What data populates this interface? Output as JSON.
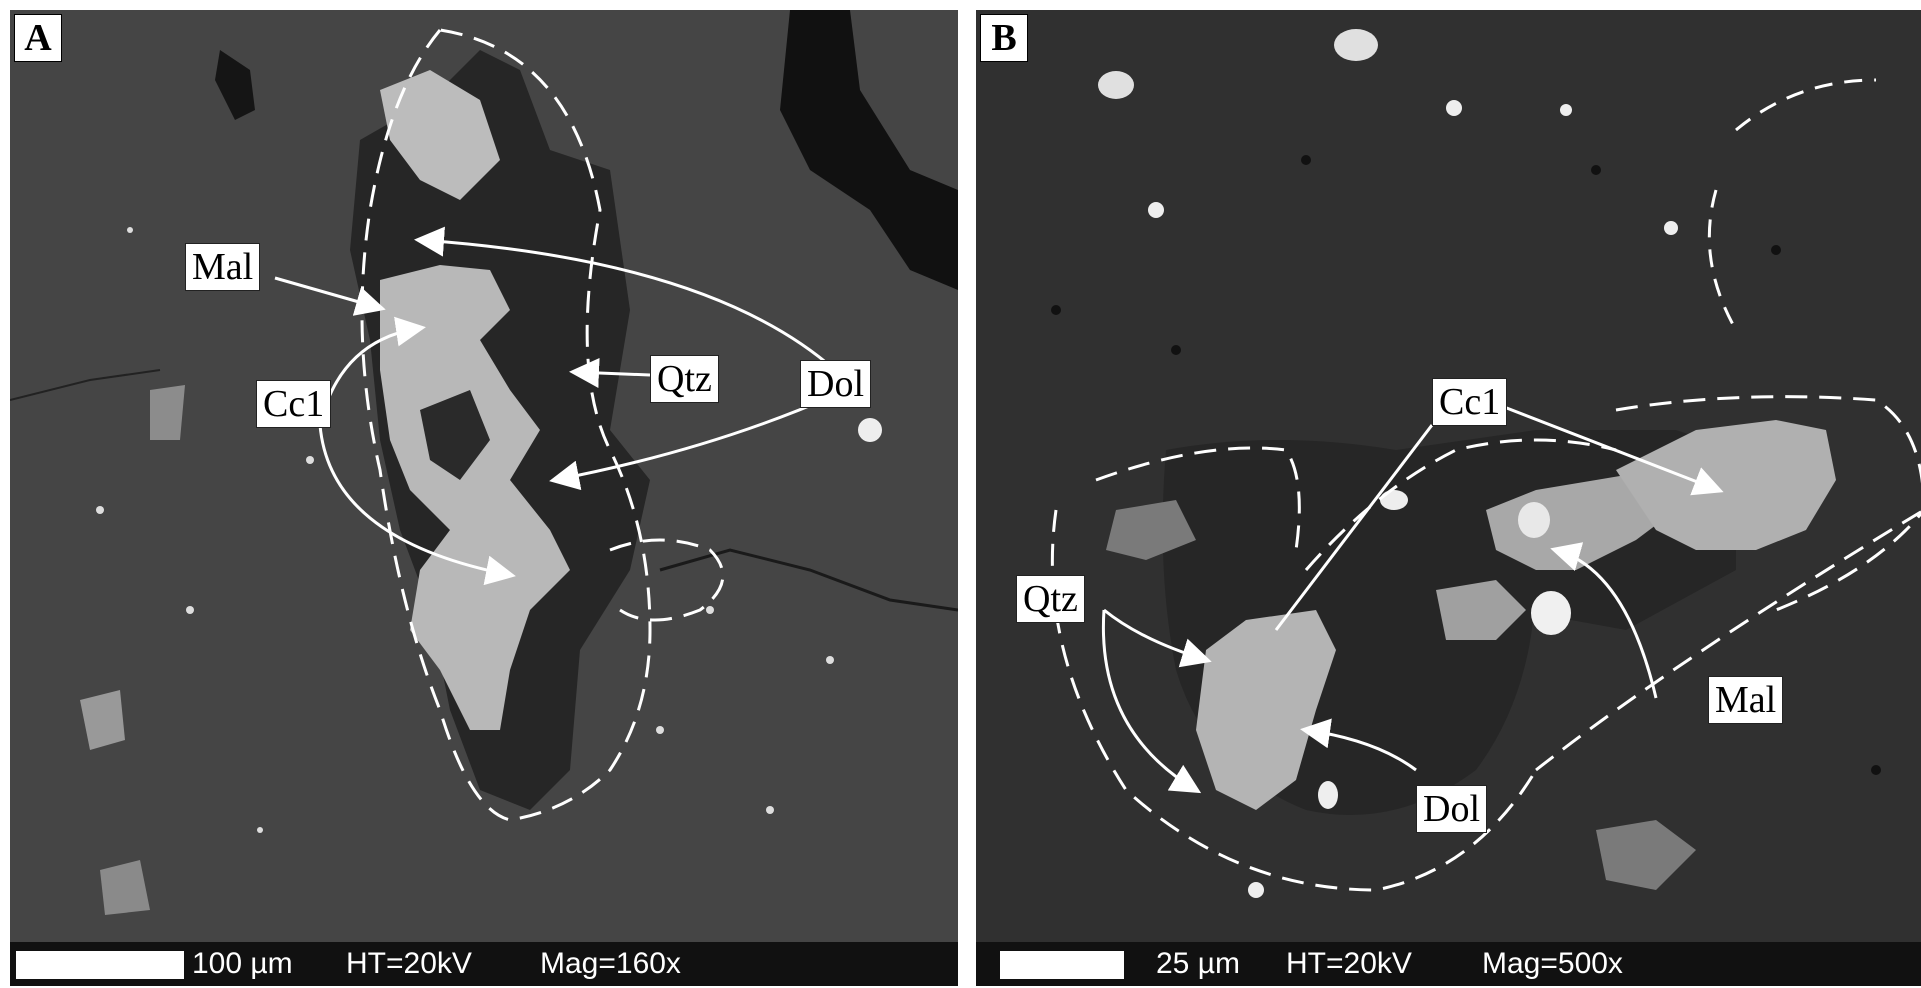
{
  "panel_a": {
    "label": "A",
    "labels": {
      "mal": "Mal",
      "cc1": "Cc1",
      "qtz": "Qtz",
      "dol": "Dol"
    },
    "scale": "100 µm",
    "ht": "HT=20kV",
    "mag": "Mag=160x"
  },
  "panel_b": {
    "label": "B",
    "labels": {
      "cc1": "Cc1",
      "qtz": "Qtz",
      "mal": "Mal",
      "dol": "Dol"
    },
    "scale": "25 µm",
    "ht": "HT=20kV",
    "mag": "Mag=500x"
  },
  "colors": {
    "matrix_a": "#454545",
    "matrix_b": "#303030",
    "mineral_light": "#b8b8b8",
    "mineral_dark": "#242424"
  }
}
